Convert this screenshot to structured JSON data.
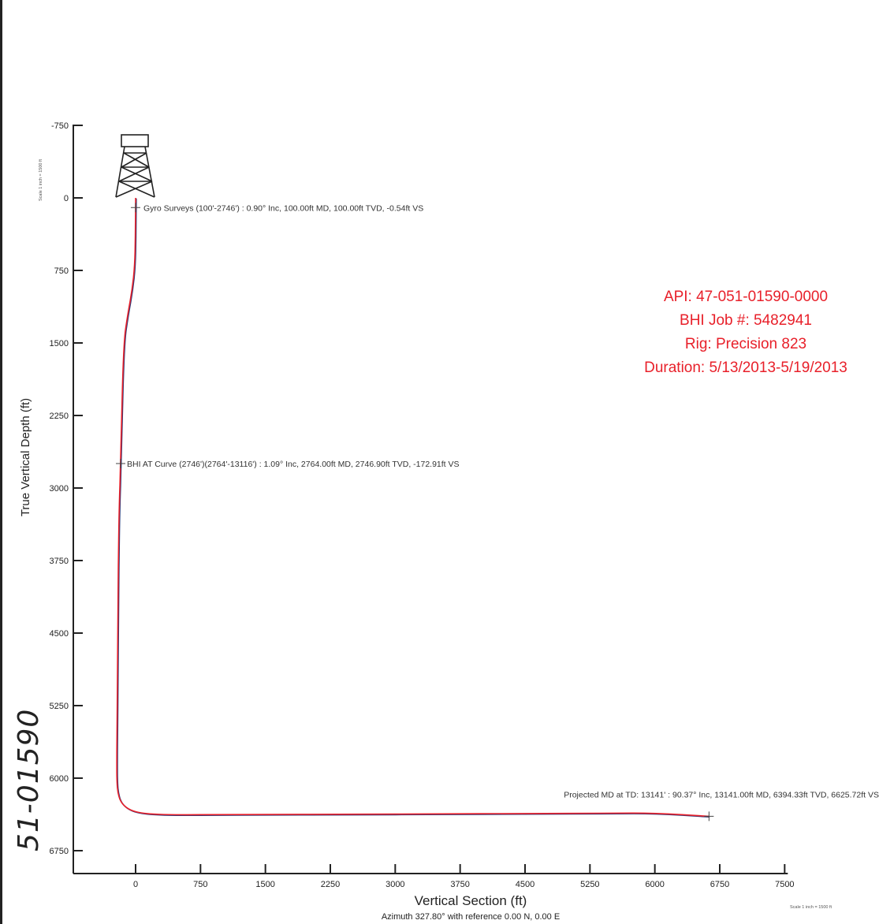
{
  "chart_data": {
    "type": "line",
    "xlabel": "Vertical Section (ft)",
    "ylabel": "True Vertical Depth (ft)",
    "subtitle": "Azimuth 327.80° with reference 0.00 N, 0.00 E",
    "x_ticks": [
      0,
      750,
      1500,
      2250,
      3000,
      3750,
      4500,
      5250,
      6000,
      6750,
      7500
    ],
    "y_ticks": [
      -750,
      0,
      750,
      1500,
      2250,
      3000,
      3750,
      4500,
      5250,
      6000,
      6750
    ],
    "xlim": [
      -650,
      7500
    ],
    "ylim": [
      -1000,
      7000
    ],
    "y_inverted": true,
    "grid": false,
    "series": [
      {
        "color": "#e8202a",
        "x": [
          0,
          -0.54,
          -3,
          -10,
          -40,
          -90,
          -140,
          -172.91,
          -190,
          -200,
          -205,
          -210,
          -215,
          -218,
          -215,
          -205,
          -180,
          -130,
          -50,
          60,
          200,
          400,
          800,
          1500,
          2500,
          3500,
          4500,
          5500,
          6000,
          6625.72
        ],
        "y": [
          0,
          100,
          400,
          700,
          950,
          1200,
          1500,
          2746.9,
          3200,
          3800,
          4400,
          5000,
          5500,
          5900,
          6050,
          6150,
          6230,
          6290,
          6335,
          6360,
          6372,
          6378,
          6378,
          6376,
          6373,
          6370,
          6366,
          6362,
          6361,
          6394.33
        ]
      }
    ],
    "annotations": [
      {
        "text": "Gyro Surveys (100'-2746') : 0.90° Inc, 100.00ft MD, 100.00ft TVD, -0.54ft VS",
        "x": -0.54,
        "y": 100
      },
      {
        "text": "BHI AT Curve (2746')(2764'-13116') : 1.09° Inc, 2764.00ft MD, 2746.90ft TVD, -172.91ft VS",
        "x": -172.91,
        "y": 2746.9
      },
      {
        "text": "Projected MD at TD: 13141' : 90.37° Inc, 13141.00ft MD, 6394.33ft TVD, 6625.72ft VS",
        "x": 6625.72,
        "y": 6394.33
      }
    ]
  },
  "info_block": {
    "api": "API: 47-051-01590-0000",
    "job": "BHI Job #: 5482941",
    "rig": "Rig: Precision 823",
    "duration": "Duration: 5/13/2013-5/19/2013"
  },
  "scale_note_y": "Scale 1 inch = 1500 ft",
  "scale_note_x": "Scale 1 inch = 1500 ft",
  "handwritten_id": "51-01590",
  "colors": {
    "trajectory": "#e8202a",
    "info_text": "#e8202a",
    "axis": "#222222"
  }
}
